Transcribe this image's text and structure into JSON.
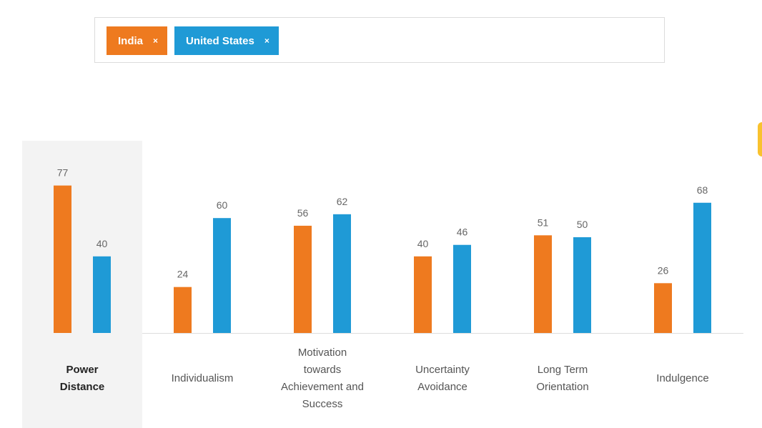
{
  "filters": {
    "chips": [
      {
        "label": "India",
        "remove": "×",
        "color": "#ee7a1f"
      },
      {
        "label": "United States",
        "remove": "×",
        "color": "#1f9ad6"
      }
    ]
  },
  "side_tab_color": "#f9c22e",
  "axis_color": "#dddddd",
  "selected_category": 0,
  "chart_data": {
    "type": "bar",
    "categories": [
      [
        "Power",
        "Distance"
      ],
      [
        "Individualism"
      ],
      [
        "Motivation",
        "towards",
        "Achievement and",
        "Success"
      ],
      [
        "Uncertainty",
        "Avoidance"
      ],
      [
        "Long Term",
        "Orientation"
      ],
      [
        "Indulgence"
      ]
    ],
    "series": [
      {
        "name": "India",
        "color": "#ee7a1f",
        "values": [
          77,
          24,
          56,
          40,
          51,
          26
        ]
      },
      {
        "name": "United States",
        "color": "#1f9ad6",
        "values": [
          40,
          60,
          62,
          46,
          50,
          68
        ]
      }
    ],
    "ylim": [
      0,
      100
    ],
    "grid": false,
    "legend": "top"
  }
}
